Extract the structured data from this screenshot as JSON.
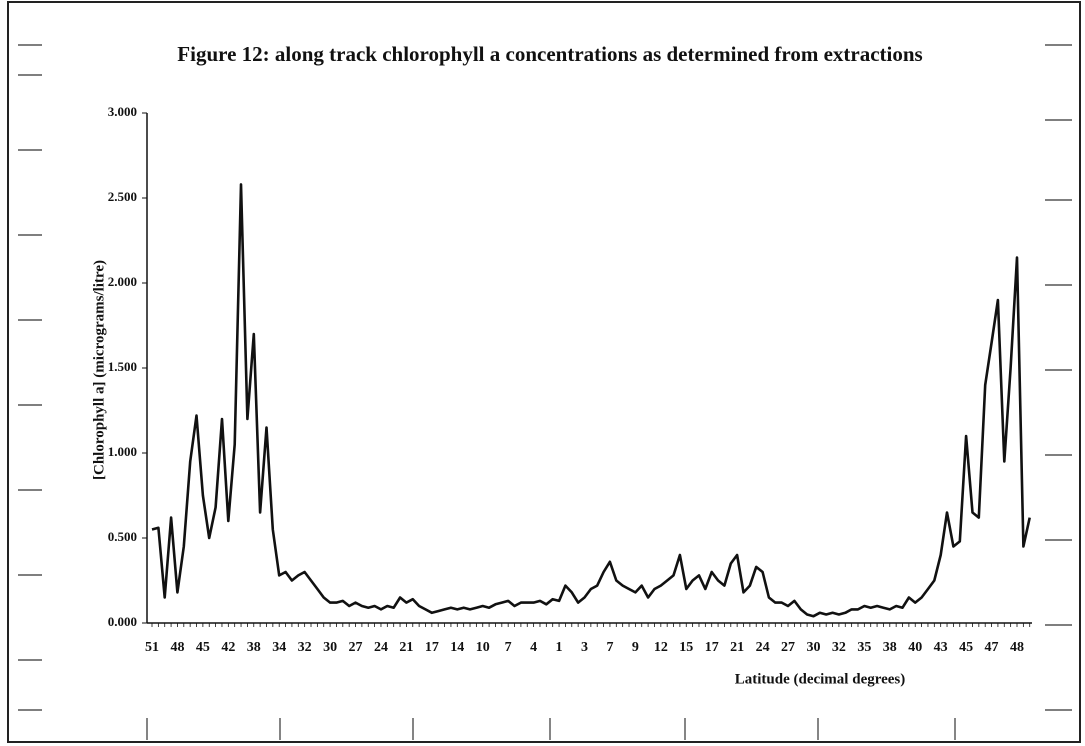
{
  "chart_data": {
    "type": "line",
    "title": "Figure 12: along track chlorophyll a concentrations as determined from extractions",
    "ylabel": "[Chlorophyll a] (micrograms/litre)",
    "xlabel": "Latitude (decimal degrees)",
    "ylim": [
      0,
      3
    ],
    "yticks": [
      {
        "value": 0,
        "label": "0.000"
      },
      {
        "value": 0.5,
        "label": "0.500"
      },
      {
        "value": 1,
        "label": "1.000"
      },
      {
        "value": 1.5,
        "label": "1.500"
      },
      {
        "value": 2,
        "label": "2.000"
      },
      {
        "value": 2.5,
        "label": "2.500"
      },
      {
        "value": 3,
        "label": "3.000"
      }
    ],
    "categories": [
      "51",
      null,
      null,
      null,
      "48",
      null,
      null,
      null,
      "45",
      null,
      null,
      null,
      "42",
      null,
      null,
      null,
      "38",
      null,
      null,
      null,
      "34",
      null,
      null,
      null,
      "32",
      null,
      null,
      null,
      "30",
      null,
      null,
      null,
      "27",
      null,
      null,
      null,
      "24",
      null,
      null,
      null,
      "21",
      null,
      null,
      null,
      "17",
      null,
      null,
      null,
      "14",
      null,
      null,
      null,
      "10",
      null,
      null,
      null,
      "7",
      null,
      null,
      null,
      "4",
      null,
      null,
      null,
      "1",
      null,
      null,
      null,
      "3",
      null,
      null,
      null,
      "7",
      null,
      null,
      null,
      "9",
      null,
      null,
      null,
      "12",
      null,
      null,
      null,
      "15",
      null,
      null,
      null,
      "17",
      null,
      null,
      null,
      "21",
      null,
      null,
      null,
      "24",
      null,
      null,
      null,
      "27",
      null,
      null,
      null,
      "30",
      null,
      null,
      null,
      "32",
      null,
      null,
      null,
      "35",
      null,
      null,
      null,
      "38",
      null,
      null,
      null,
      "40",
      null,
      null,
      null,
      "43",
      null,
      null,
      null,
      "45",
      null,
      null,
      null,
      "47",
      null,
      null,
      null,
      "48",
      null,
      null
    ],
    "color": "#111111",
    "values": [
      0.55,
      0.56,
      0.15,
      0.62,
      0.18,
      0.45,
      0.95,
      1.22,
      0.75,
      0.5,
      0.68,
      1.2,
      0.6,
      1.05,
      2.58,
      1.2,
      1.7,
      0.65,
      1.15,
      0.55,
      0.28,
      0.3,
      0.25,
      0.28,
      0.3,
      0.25,
      0.2,
      0.15,
      0.12,
      0.12,
      0.13,
      0.1,
      0.12,
      0.1,
      0.09,
      0.1,
      0.08,
      0.1,
      0.09,
      0.15,
      0.12,
      0.14,
      0.1,
      0.08,
      0.06,
      0.07,
      0.08,
      0.09,
      0.08,
      0.09,
      0.08,
      0.09,
      0.1,
      0.09,
      0.11,
      0.12,
      0.13,
      0.1,
      0.12,
      0.12,
      0.12,
      0.13,
      0.11,
      0.14,
      0.13,
      0.22,
      0.18,
      0.12,
      0.15,
      0.2,
      0.22,
      0.3,
      0.36,
      0.25,
      0.22,
      0.2,
      0.18,
      0.22,
      0.15,
      0.2,
      0.22,
      0.25,
      0.28,
      0.4,
      0.2,
      0.25,
      0.28,
      0.2,
      0.3,
      0.25,
      0.22,
      0.35,
      0.4,
      0.18,
      0.22,
      0.33,
      0.3,
      0.15,
      0.12,
      0.12,
      0.1,
      0.13,
      0.08,
      0.05,
      0.04,
      0.06,
      0.05,
      0.06,
      0.05,
      0.06,
      0.08,
      0.08,
      0.1,
      0.09,
      0.1,
      0.09,
      0.08,
      0.1,
      0.09,
      0.15,
      0.12,
      0.15,
      0.2,
      0.25,
      0.4,
      0.65,
      0.45,
      0.48,
      1.1,
      0.65,
      0.62,
      1.4,
      1.65,
      1.9,
      0.95,
      1.5,
      2.15,
      0.45,
      0.62
    ]
  }
}
